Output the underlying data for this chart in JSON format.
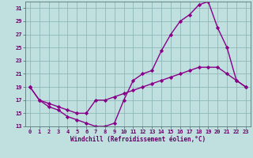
{
  "xlabel": "Windchill (Refroidissement éolien,°C)",
  "bg_color": "#c0e0e0",
  "grid_color": "#90b8b8",
  "line_color": "#880088",
  "marker": "D",
  "markersize": 2.2,
  "linewidth": 1.0,
  "xlim": [
    -0.5,
    23.5
  ],
  "ylim": [
    13,
    32
  ],
  "yticks": [
    13,
    15,
    17,
    19,
    21,
    23,
    25,
    27,
    29,
    31
  ],
  "xticks": [
    0,
    1,
    2,
    3,
    4,
    5,
    6,
    7,
    8,
    9,
    10,
    11,
    12,
    13,
    14,
    15,
    16,
    17,
    18,
    19,
    20,
    21,
    22,
    23
  ],
  "curve1_x": [
    0,
    1,
    2,
    3,
    4,
    5,
    6,
    7,
    8,
    9,
    10,
    11,
    12,
    13,
    14,
    15,
    16,
    17,
    18,
    19,
    20,
    21,
    22,
    23
  ],
  "curve1_y": [
    19,
    17,
    16,
    15.5,
    14.5,
    14,
    13.5,
    13,
    13,
    13.5,
    17,
    20,
    21,
    21.5,
    24.5,
    27,
    29,
    30,
    31.5,
    32,
    28,
    25,
    20,
    19
  ],
  "curve2_x": [
    0,
    1,
    2,
    3,
    4,
    5,
    6,
    7,
    8,
    9,
    10,
    11,
    12,
    13,
    14,
    15,
    16,
    17,
    18,
    19,
    20,
    21,
    22,
    23
  ],
  "curve2_y": [
    19,
    17,
    16.5,
    16,
    15.5,
    15,
    15,
    17,
    17,
    17.5,
    18,
    18.5,
    19,
    19.5,
    20,
    20.5,
    21,
    21.5,
    22,
    22,
    22,
    21,
    20,
    19
  ],
  "xlabel_fontsize": 5.5,
  "tick_fontsize": 5.0,
  "spine_color": "#557777"
}
